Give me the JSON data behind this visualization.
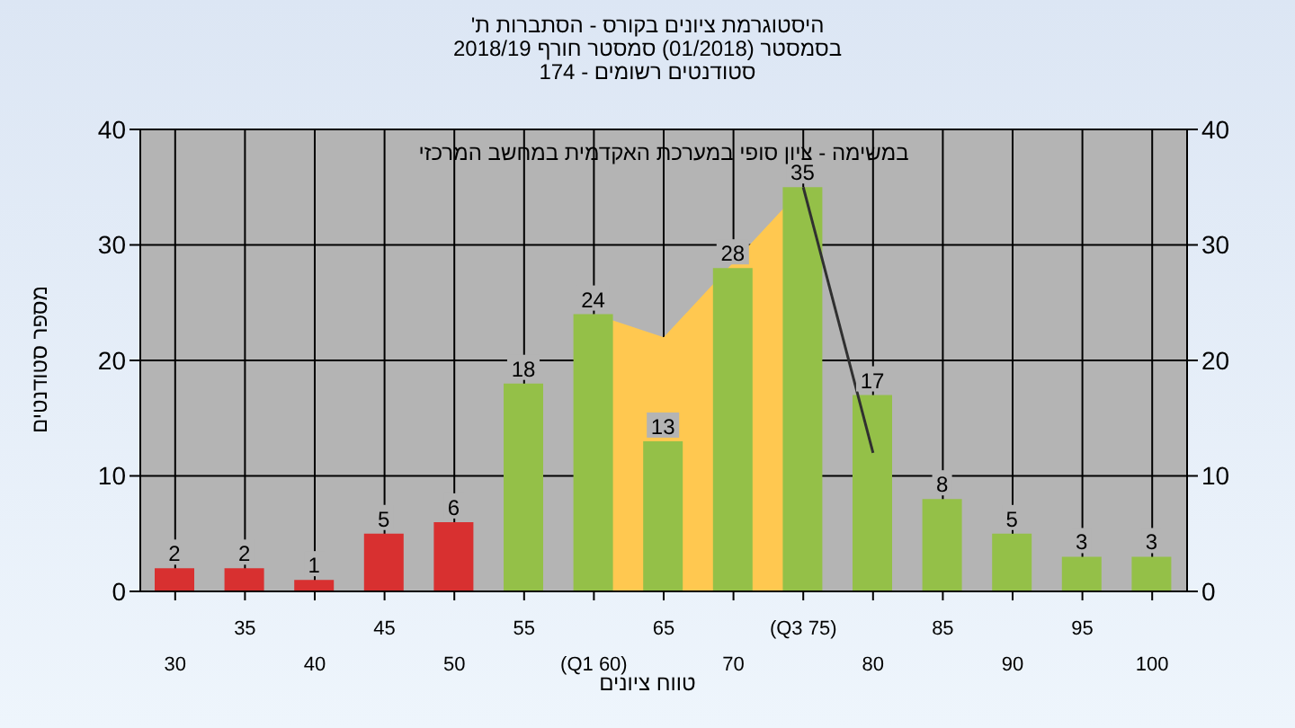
{
  "chart_data": {
    "type": "bar",
    "title": "היסטוגרמת ציונים בקורס - הסתברות ת'",
    "subtitle": "בסמסטר  (01/2018)  סמסטר חורף 2018/19\nסטודנטים רשומים - 174",
    "xlabel": "טווח ציונים",
    "ylabel": "מספר סטודנטים",
    "annotations": [
      "במשימה - ציון סופי במערכת האקדמית במחשב המרכזי"
    ],
    "categories": [
      "30",
      "35",
      "40",
      "45",
      "50",
      "55",
      "(Q1 60)",
      "65",
      "70",
      "(Q3 75)",
      "80",
      "85",
      "90",
      "95",
      "100"
    ],
    "series": [
      {
        "type": "area",
        "color": "#ffc850",
        "values": [
          null,
          null,
          null,
          null,
          null,
          null,
          24,
          22,
          null,
          35,
          null,
          null,
          null,
          null,
          null
        ]
      },
      {
        "type": "line",
        "color": "#303030",
        "values": [
          null,
          null,
          null,
          null,
          null,
          null,
          null,
          null,
          null,
          35,
          12,
          null,
          null,
          null,
          null
        ]
      },
      {
        "type": "bar",
        "colors": [
          "#d83030",
          "#d83030",
          "#d83030",
          "#d83030",
          "#d83030",
          "#94c048",
          "#94c048",
          "#94c048",
          "#94c048",
          "#94c048",
          "#94c048",
          "#94c048",
          "#94c048",
          "#94c048",
          "#94c048"
        ],
        "values": [
          2,
          2,
          1,
          5,
          6,
          18,
          24,
          13,
          28,
          35,
          17,
          8,
          5,
          3,
          3
        ],
        "data_labels": true
      }
    ],
    "ylim": [
      0,
      40
    ],
    "yticks": [
      0,
      10,
      20,
      30,
      40
    ],
    "y2lim": [
      0,
      40
    ],
    "y2ticks": [
      0,
      10,
      20,
      30,
      40
    ],
    "grid": true,
    "legend": false
  }
}
